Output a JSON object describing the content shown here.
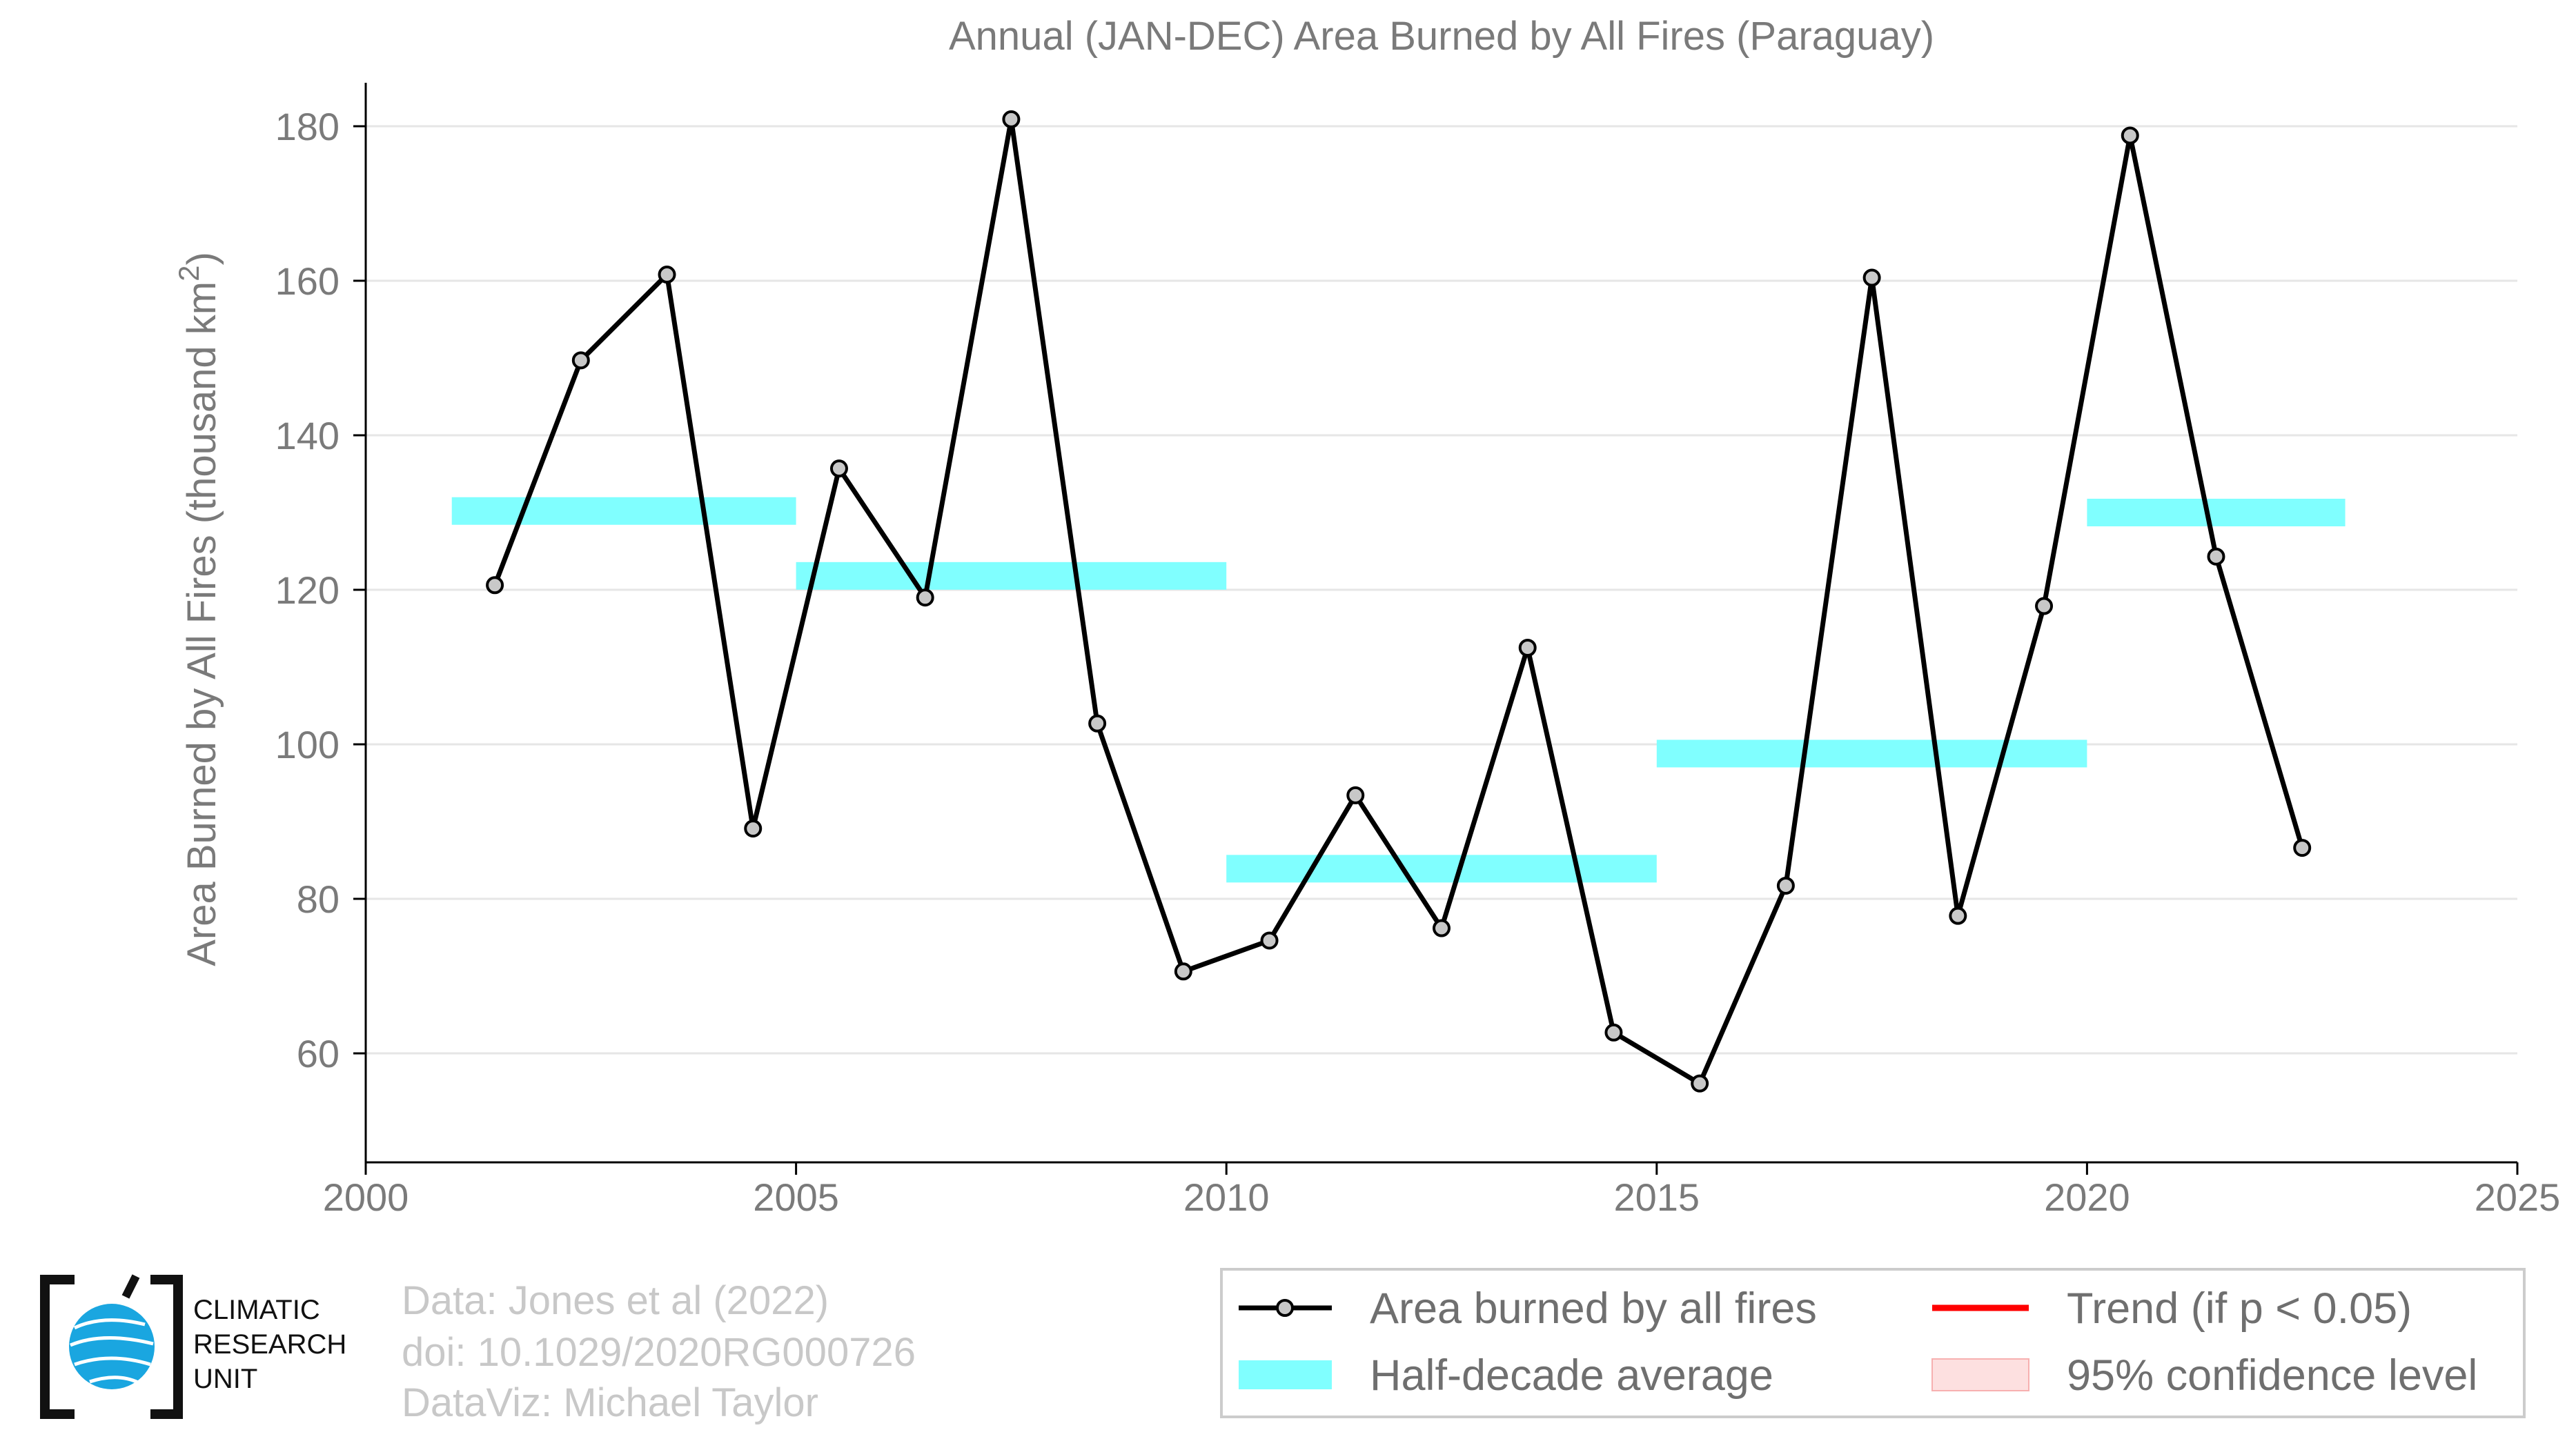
{
  "colors": {
    "line": "#000000",
    "marker_fill": "#c8c8c8",
    "half_decade": "#80ffff",
    "trend": "#ff0000",
    "confidence": "#fde0e0",
    "grid": "#e6e6e6",
    "axis_text": "#7a7a7a",
    "logo_blue": "#1aa6e0"
  },
  "logo": {
    "line1": "CLIMATIC",
    "line2": "RESEARCH",
    "line3": "UNIT",
    "icon": "globe-icon"
  },
  "credits": {
    "line1": "Data: Jones et al (2022)",
    "line2": "doi: 10.1029/2020RG000726",
    "line3": "DataViz: Michael Taylor"
  },
  "chart_data": {
    "type": "line",
    "title": "Annual (JAN-DEC) Area Burned by All Fires (Paraguay)",
    "ylabel": "Area Burned by All Fires (thousand km",
    "ylabel_sup": "2",
    "ylabel_end": ")",
    "xlabel": "",
    "xlim": [
      2000,
      2025
    ],
    "ylim": [
      46,
      180
    ],
    "xticks": [
      2000,
      2005,
      2010,
      2015,
      2020,
      2025
    ],
    "yticks": [
      60,
      80,
      100,
      120,
      140,
      160,
      180
    ],
    "grid": true,
    "series": [
      {
        "name": "Area burned by all fires",
        "x": [
          2001.5,
          2002.5,
          2003.5,
          2004.5,
          2005.5,
          2006.5,
          2007.5,
          2008.5,
          2009.5,
          2010.5,
          2011.5,
          2012.5,
          2013.5,
          2014.5,
          2015.5,
          2016.5,
          2017.5,
          2018.5,
          2019.5,
          2020.5,
          2021.5,
          2022.5
        ],
        "values": [
          120.6,
          149.7,
          160.8,
          89.1,
          135.7,
          119.0,
          180.9,
          102.7,
          70.6,
          74.6,
          93.4,
          76.2,
          112.5,
          62.7,
          56.1,
          81.7,
          160.4,
          77.8,
          117.9,
          178.8,
          124.3,
          86.6
        ]
      }
    ],
    "half_decade_averages": [
      {
        "start": 2001,
        "end": 2005,
        "value": 130.2
      },
      {
        "start": 2005,
        "end": 2010,
        "value": 121.8
      },
      {
        "start": 2010,
        "end": 2015,
        "value": 83.9
      },
      {
        "start": 2015,
        "end": 2020,
        "value": 98.8
      },
      {
        "start": 2020,
        "end": 2023,
        "value": 130.0
      }
    ],
    "legend": {
      "position": "bottom-right",
      "entries": [
        {
          "label": "Area burned by all fires",
          "kind": "line-marker"
        },
        {
          "label": "Trend (if p < 0.05)",
          "kind": "line-red"
        },
        {
          "label": "Half-decade average",
          "kind": "band-cyan"
        },
        {
          "label": "95% confidence level",
          "kind": "band-pink"
        }
      ]
    }
  }
}
